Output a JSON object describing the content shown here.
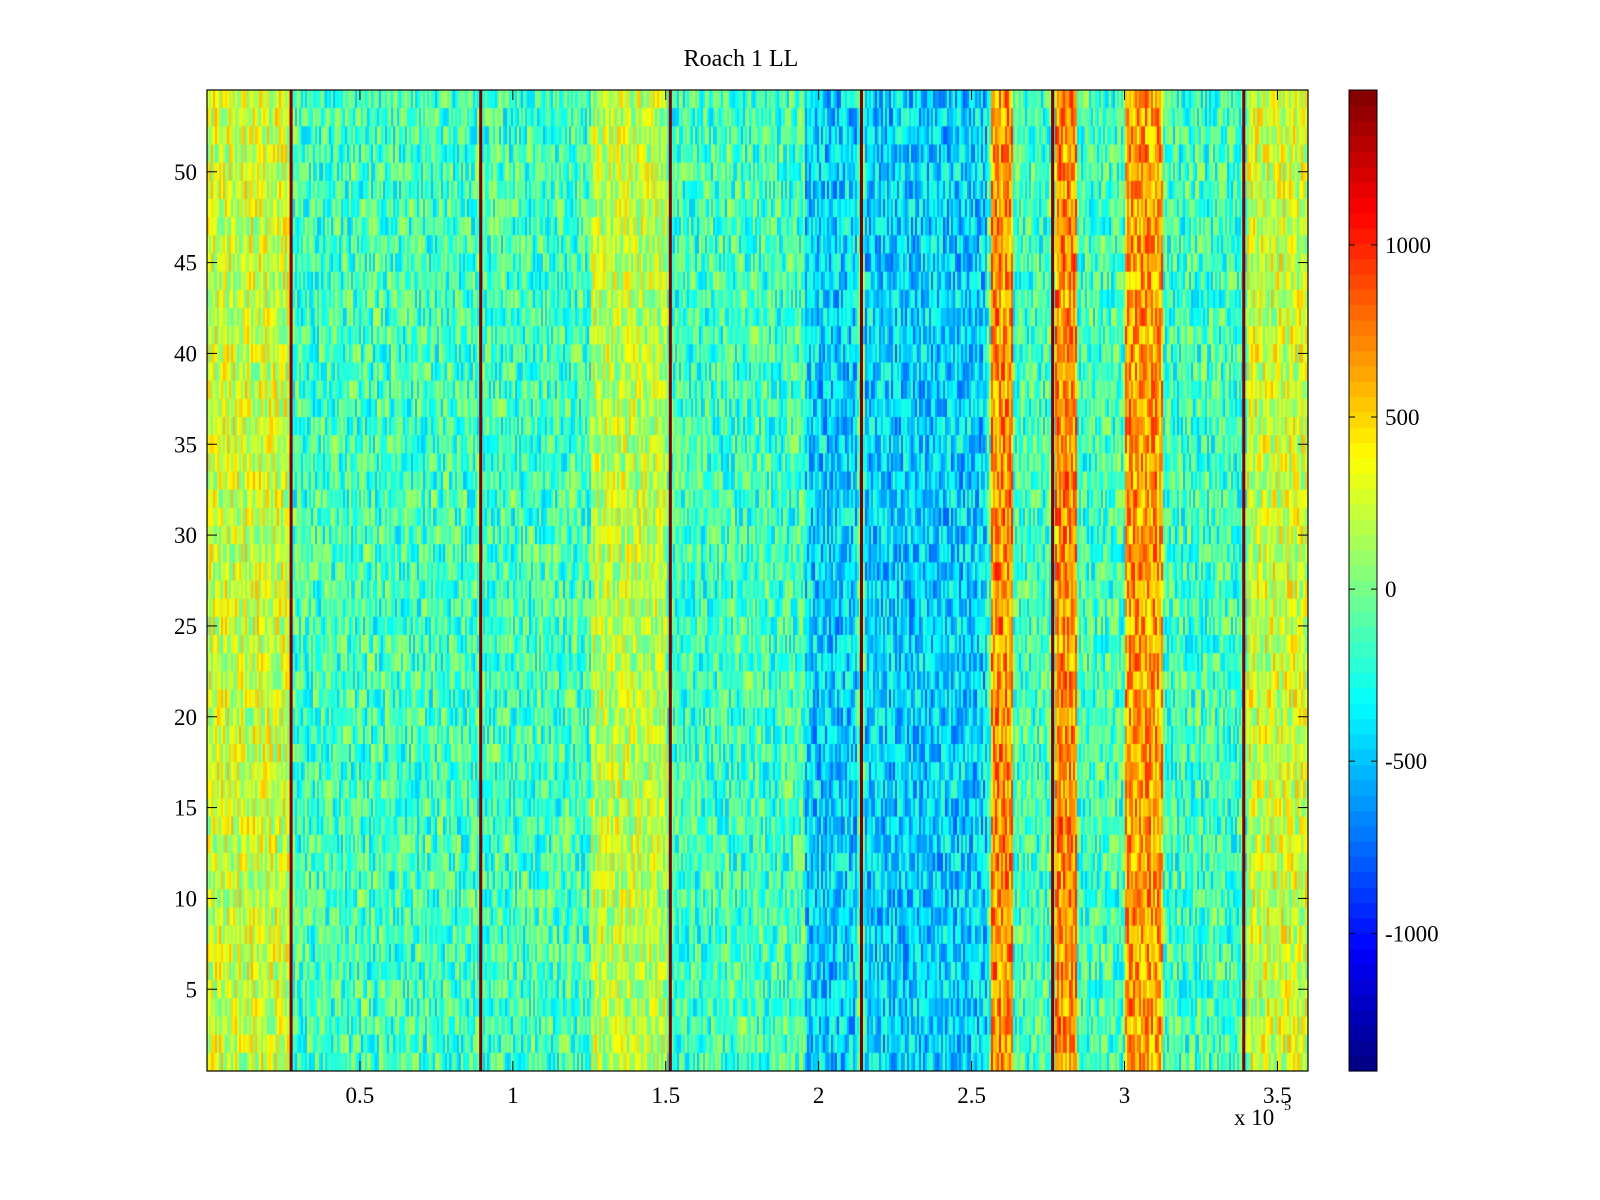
{
  "chart_data": {
    "type": "heatmap",
    "title": "Roach 1 LL",
    "xlabel": "",
    "ylabel": "",
    "colormap": "jet",
    "x_range": [
      0,
      360000
    ],
    "y_range": [
      0.5,
      54.5
    ],
    "rows": 54,
    "x_ticks": [
      50000,
      100000,
      150000,
      200000,
      250000,
      300000,
      350000
    ],
    "x_tick_labels": [
      "0.5",
      "1",
      "1.5",
      "2",
      "2.5",
      "3",
      "3.5"
    ],
    "x_exponent_label": "x 10",
    "x_exponent": "5",
    "y_ticks": [
      5,
      10,
      15,
      20,
      25,
      30,
      35,
      40,
      45,
      50
    ],
    "y_tick_labels": [
      "5",
      "10",
      "15",
      "20",
      "25",
      "30",
      "35",
      "40",
      "45",
      "50"
    ],
    "clim": [
      -1400,
      1450
    ],
    "colorbar_ticks": [
      -1000,
      -500,
      0,
      500,
      1000
    ],
    "colorbar_tick_labels": [
      "-1000",
      "-500",
      "0",
      "500",
      "1000"
    ],
    "baseline_level": -150,
    "vertical_lines": [
      {
        "x": 27500,
        "value": 1450
      },
      {
        "x": 89500,
        "value": 1450
      },
      {
        "x": 151500,
        "value": 1450
      },
      {
        "x": 214000,
        "value": 1450
      },
      {
        "x": 276500,
        "value": 1450
      },
      {
        "x": 339000,
        "value": 1450
      }
    ],
    "bands": [
      {
        "x_start": 0,
        "x_end": 27000,
        "level": 250
      },
      {
        "x_start": 125000,
        "x_end": 150000,
        "level": 200
      },
      {
        "x_start": 195000,
        "x_end": 212000,
        "level": -450
      },
      {
        "x_start": 215000,
        "x_end": 255000,
        "level": -450
      },
      {
        "x_start": 256000,
        "x_end": 263000,
        "level": 700
      },
      {
        "x_start": 277000,
        "x_end": 284000,
        "level": 700
      },
      {
        "x_start": 300000,
        "x_end": 312000,
        "level": 650
      },
      {
        "x_start": 340000,
        "x_end": 360000,
        "level": 250
      }
    ]
  }
}
